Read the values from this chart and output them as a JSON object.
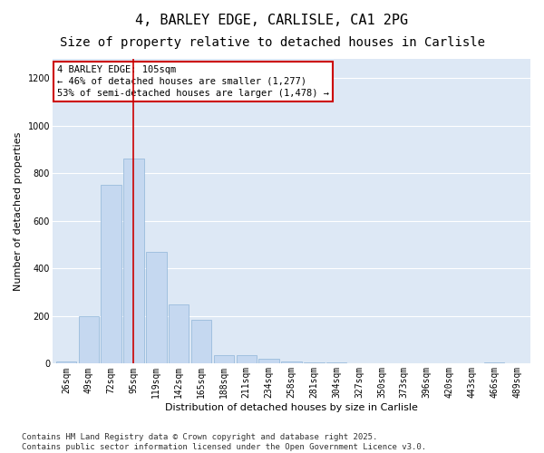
{
  "title_line1": "4, BARLEY EDGE, CARLISLE, CA1 2PG",
  "title_line2": "Size of property relative to detached houses in Carlisle",
  "xlabel": "Distribution of detached houses by size in Carlisle",
  "ylabel": "Number of detached properties",
  "categories": [
    "26sqm",
    "49sqm",
    "72sqm",
    "95sqm",
    "119sqm",
    "142sqm",
    "165sqm",
    "188sqm",
    "211sqm",
    "234sqm",
    "258sqm",
    "281sqm",
    "304sqm",
    "327sqm",
    "350sqm",
    "373sqm",
    "396sqm",
    "420sqm",
    "443sqm",
    "466sqm",
    "489sqm"
  ],
  "values": [
    10,
    200,
    750,
    860,
    470,
    250,
    185,
    35,
    35,
    20,
    10,
    5,
    5,
    0,
    2,
    0,
    0,
    0,
    0,
    5,
    0
  ],
  "bar_color": "#c5d8f0",
  "bar_edge_color": "#8fb4d8",
  "vline_color": "#cc0000",
  "annotation_text": "4 BARLEY EDGE: 105sqm\n← 46% of detached houses are smaller (1,277)\n53% of semi-detached houses are larger (1,478) →",
  "annotation_box_color": "#ffffff",
  "annotation_box_edge": "#cc0000",
  "ylim": [
    0,
    1280
  ],
  "yticks": [
    0,
    200,
    400,
    600,
    800,
    1000,
    1200
  ],
  "plot_bg_color": "#dde8f5",
  "fig_bg_color": "#ffffff",
  "grid_color": "#ffffff",
  "footer_line1": "Contains HM Land Registry data © Crown copyright and database right 2025.",
  "footer_line2": "Contains public sector information licensed under the Open Government Licence v3.0.",
  "title1_fontsize": 11,
  "title2_fontsize": 10,
  "axis_label_fontsize": 8,
  "tick_fontsize": 7,
  "annotation_fontsize": 7.5,
  "footer_fontsize": 6.5,
  "ylabel_fontsize": 8
}
